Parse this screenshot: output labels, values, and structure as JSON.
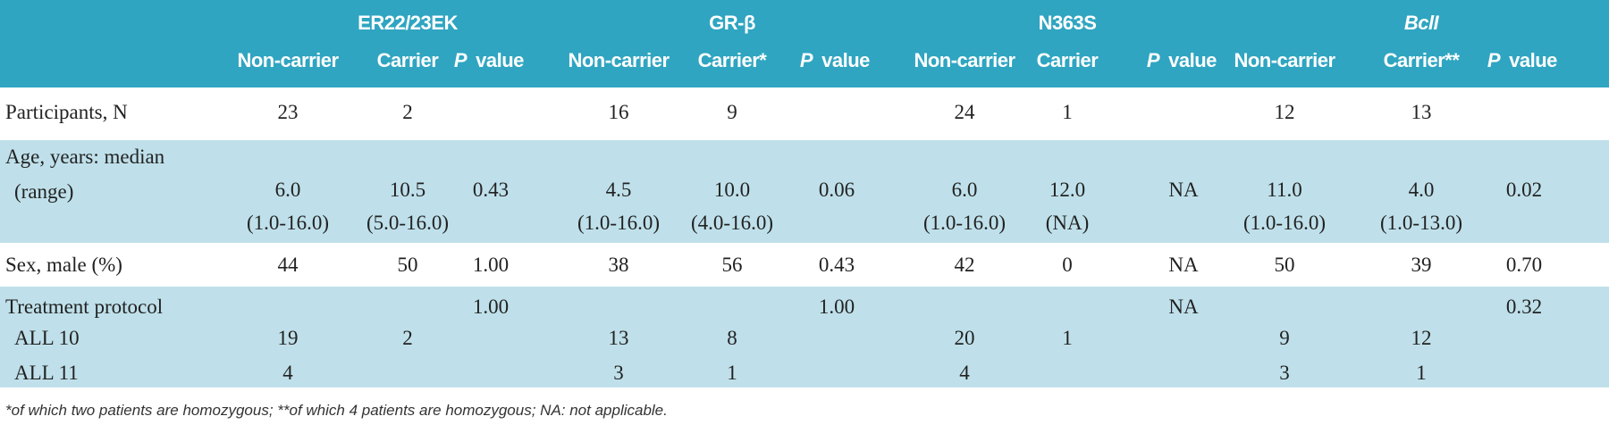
{
  "table": {
    "groups": [
      "ER22/23EK",
      "GR-β",
      "N363S",
      "BclI"
    ],
    "subheaders": [
      "Non-carrier",
      "Carrier",
      [
        "P",
        "value"
      ],
      "Non-carrier",
      "Carrier*",
      [
        "P",
        "value"
      ],
      "Non-carrier",
      "Carrier",
      [
        "P",
        "value"
      ],
      "Non-carrier",
      "Carrier**",
      [
        "P",
        "value"
      ]
    ],
    "rows": [
      {
        "label": [
          "Participants, N"
        ],
        "cells": [
          "23",
          "2",
          null,
          "16",
          "9",
          null,
          "24",
          "1",
          null,
          "12",
          "13",
          null
        ]
      },
      {
        "label": [
          "Age, years: median",
          "(range)"
        ],
        "cells": [
          [
            "6.0",
            "(1.0-16.0)"
          ],
          [
            "10.5",
            "(5.0-16.0)"
          ],
          "0.43",
          [
            "4.5",
            "(1.0-16.0)"
          ],
          [
            "10.0",
            "(4.0-16.0)"
          ],
          "0.06",
          [
            "6.0",
            "(1.0-16.0)"
          ],
          [
            "12.0",
            "(NA)"
          ],
          "NA",
          [
            "11.0",
            "(1.0-16.0)"
          ],
          [
            "4.0",
            "(1.0-13.0)"
          ],
          "0.02"
        ]
      },
      {
        "label": [
          "Sex, male (%)"
        ],
        "cells": [
          "44",
          "50",
          "1.00",
          "38",
          "56",
          "0.43",
          "42",
          "0",
          "NA",
          "50",
          "39",
          "0.70"
        ]
      },
      {
        "label": [
          "Treatment protocol"
        ],
        "cells": [
          null,
          null,
          "1.00",
          null,
          null,
          "1.00",
          null,
          null,
          "NA",
          null,
          null,
          "0.32"
        ]
      },
      {
        "label": [
          "ALL 10"
        ],
        "cells": [
          "19",
          "2",
          null,
          "13",
          "8",
          null,
          "20",
          "1",
          null,
          "9",
          "12",
          null
        ]
      },
      {
        "label": [
          "ALL 11"
        ],
        "cells": [
          "4",
          null,
          null,
          "3",
          "1",
          null,
          "4",
          null,
          null,
          "3",
          "1",
          null
        ]
      }
    ],
    "footnote": "*of which two patients are homozygous; **of which 4 patients are homozygous; NA: not applicable."
  }
}
